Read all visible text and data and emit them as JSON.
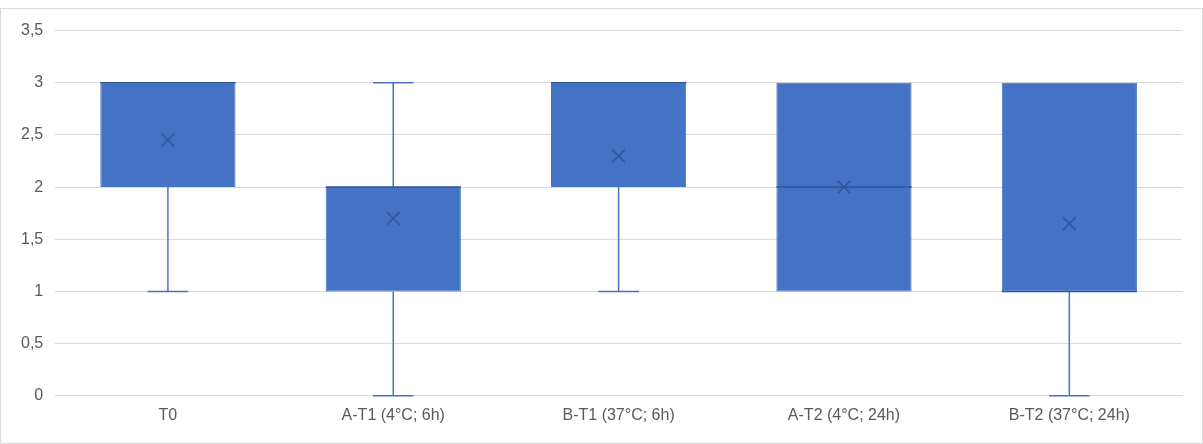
{
  "chart_data": {
    "type": "box",
    "categories": [
      "T0",
      "A-T1 (4°C; 6h)",
      "B-T1 (37°C; 6h)",
      "A-T2 (4°C; 24h)",
      "B-T2 (37°C; 24h)"
    ],
    "color": "#4472c4",
    "boxes": [
      {
        "low": 1,
        "q1": 2,
        "median": 3,
        "q3": 3,
        "high": 3,
        "mean": 2.45
      },
      {
        "low": 0,
        "q1": 1,
        "median": 2,
        "q3": 2,
        "high": 3,
        "mean": 1.7
      },
      {
        "low": 1,
        "q1": 2,
        "median": 3,
        "q3": 3,
        "high": 3,
        "mean": 2.3
      },
      {
        "low": 1,
        "q1": 1,
        "median": 2,
        "q3": 3,
        "high": 3,
        "mean": 2
      },
      {
        "low": 0,
        "q1": 1,
        "median": 1,
        "q3": 3,
        "high": 3,
        "mean": 1.65
      }
    ],
    "ylim": [
      0,
      3.5
    ],
    "yticks": [
      0,
      {
        "value": 0.5,
        "label": "0,5"
      },
      1,
      {
        "value": 1.5,
        "label": "1,5"
      },
      2,
      {
        "value": 2.5,
        "label": "2,5"
      },
      3,
      {
        "value": 3.5,
        "label": "3,5"
      }
    ],
    "grid": "y",
    "legend": false
  }
}
